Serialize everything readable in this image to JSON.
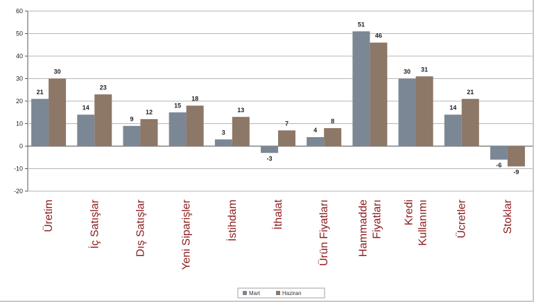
{
  "chart_data": {
    "type": "bar",
    "title": "",
    "xlabel": "",
    "ylabel": "",
    "ylim": [
      -20,
      60
    ],
    "yticks": [
      -20,
      -10,
      0,
      10,
      20,
      30,
      40,
      50,
      60
    ],
    "grid": true,
    "legend_position": "bottom",
    "categories": [
      [
        "Üretim"
      ],
      [
        "İç Satışlar"
      ],
      [
        "Dış Satışlar"
      ],
      [
        "Yeni Siparişler"
      ],
      [
        "İstihdam"
      ],
      [
        "İthalat"
      ],
      [
        "Ürün Fiyatları"
      ],
      [
        "Hammadde",
        "Fiyatları"
      ],
      [
        "Kredi",
        "Kullanımı"
      ],
      [
        "Ücretler"
      ],
      [
        "Stoklar"
      ]
    ],
    "series": [
      {
        "name": "Mart",
        "color": "#7c8795",
        "values": [
          21,
          14,
          9,
          15,
          3,
          -3,
          4,
          51,
          30,
          14,
          -6
        ]
      },
      {
        "name": "Haziran",
        "color": "#8d7766",
        "values": [
          30,
          23,
          12,
          18,
          13,
          7,
          8,
          46,
          31,
          21,
          -9
        ]
      }
    ]
  }
}
